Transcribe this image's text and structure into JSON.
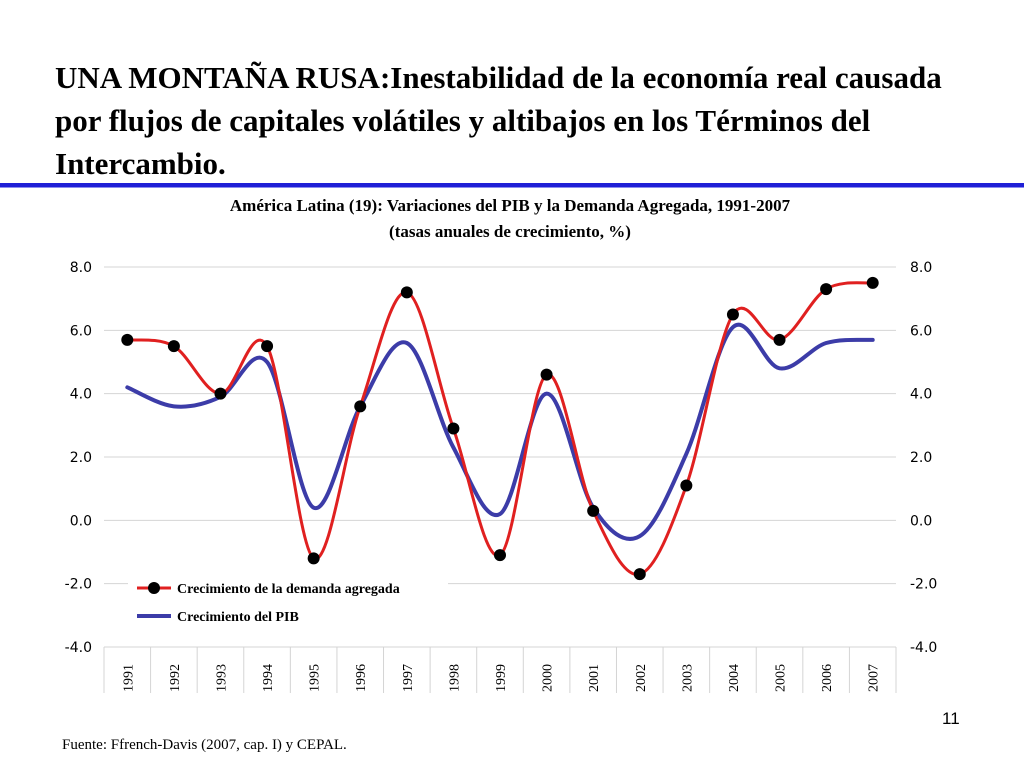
{
  "slide": {
    "title": "UNA MONTAÑA RUSA:Inestabilidad de la economía real causada por flujos de capitales volátiles y altibajos en los Términos del Intercambio.",
    "source": "Fuente: Ffrench-Davis (2007, cap. I) y CEPAL.",
    "page_number": "11",
    "accent_color": "#1f1fd6"
  },
  "chart_data": {
    "type": "line",
    "title": "América Latina (19): Variaciones del PIB y la Demanda Agregada, 1991-2007",
    "subtitle": "(tasas anuales de crecimiento, %)",
    "categories": [
      "1991",
      "1992",
      "1993",
      "1994",
      "1995",
      "1996",
      "1997",
      "1998",
      "1999",
      "2000",
      "2001",
      "2002",
      "2003",
      "2004",
      "2005",
      "2006",
      "2007"
    ],
    "series": [
      {
        "name": "Crecimiento de la demanda agregada",
        "color": "#e02020",
        "marker": "circle",
        "values": [
          5.7,
          5.5,
          4.0,
          5.5,
          -1.2,
          3.6,
          7.2,
          2.9,
          -1.1,
          4.6,
          0.3,
          -1.7,
          1.1,
          6.5,
          5.7,
          7.3,
          7.5
        ]
      },
      {
        "name": "Crecimiento del PIB",
        "color": "#3c3ca8",
        "marker": "none",
        "values": [
          4.2,
          3.6,
          3.9,
          5.0,
          0.4,
          3.6,
          5.6,
          2.3,
          0.2,
          4.0,
          0.4,
          -0.5,
          2.1,
          6.1,
          4.8,
          5.6,
          5.7
        ]
      }
    ],
    "y_ticks": [
      "8.0",
      "6.0",
      "4.0",
      "2.0",
      "0.0",
      "-2.0",
      "-4.0"
    ],
    "ylim": [
      -4,
      8
    ],
    "y_axis_both_sides": true,
    "grid": true,
    "legend_position": "bottom-left"
  }
}
